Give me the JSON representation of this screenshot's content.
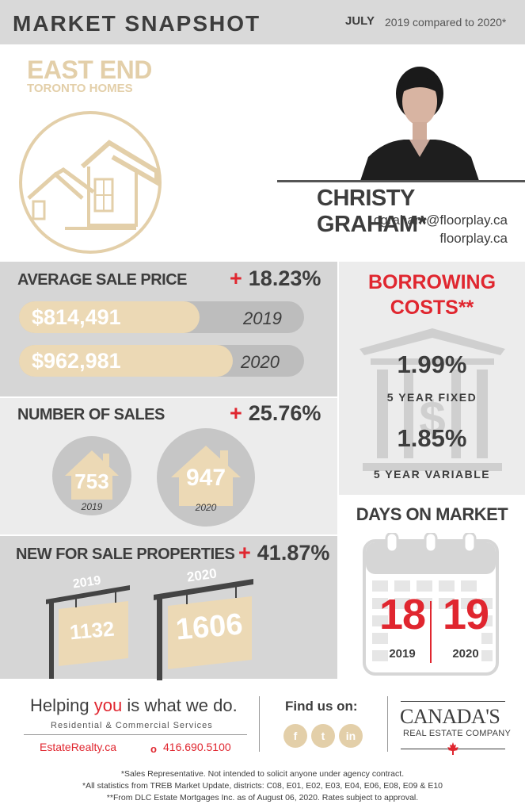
{
  "header": {
    "title": "MARKET SNAPSHOT",
    "month": "JULY",
    "compare": "2019 compared to 2020*"
  },
  "area": {
    "name": "EAST END",
    "subtitle": "TORONTO HOMES"
  },
  "agent": {
    "name": "CHRISTY GRAHAM*",
    "email": "cgraham@floorplay.ca",
    "website": "floorplay.ca"
  },
  "avg_sale_price": {
    "title": "AVERAGE SALE PRICE",
    "plus": "+",
    "change": "18.23%",
    "rows": [
      {
        "value": "$814,491",
        "year": "2019",
        "fill": 0.846
      },
      {
        "value": "$962,981",
        "year": "2020",
        "fill": 1.0
      }
    ]
  },
  "number_of_sales": {
    "title": "NUMBER OF SALES",
    "plus": "+",
    "change": "25.76%",
    "items": [
      {
        "value": "753",
        "year": "2019"
      },
      {
        "value": "947",
        "year": "2020"
      }
    ]
  },
  "new_for_sale": {
    "title": "NEW FOR SALE PROPERTIES",
    "plus": "+",
    "change": "41.87%",
    "items": [
      {
        "value": "1132",
        "year": "2019"
      },
      {
        "value": "1606",
        "year": "2020"
      }
    ]
  },
  "borrowing": {
    "title_line1": "BORROWING",
    "title_line2": "COSTS**",
    "fixed_rate": "1.99%",
    "fixed_label": "5 YEAR FIXED",
    "variable_rate": "1.85%",
    "variable_label": "5 YEAR VARIABLE"
  },
  "days_on_market": {
    "title": "DAYS ON MARKET",
    "values": [
      {
        "value": "18",
        "year": "2019"
      },
      {
        "value": "19",
        "year": "2020"
      }
    ]
  },
  "footer": {
    "tagline_pre": "Helping ",
    "tagline_you": "you",
    "tagline_post": " is what we do.",
    "services": "Residential & Commercial Services",
    "website": "EstateRealty.ca",
    "phone_dot": "o",
    "phone": "416.690.5100",
    "find_us": "Find us on:",
    "social": [
      "f",
      "t",
      "in"
    ],
    "company_line1": "CANADA'S",
    "company_line2": "REAL ESTATE COMPANY",
    "notes": [
      "*Sales Representative. Not intended to solicit anyone under agency contract.",
      "*All statistics from TREB Market Update, districts: C08, E01, E02, E03, E04, E06, E08, E09 & E10",
      "**From DLC Estate Mortgages Inc. as of August 06, 2020. Rates subject to approval."
    ]
  },
  "icons": {
    "house_logo": "house-outline-icon",
    "bank": "bank-dollar-icon",
    "calendar": "calendar-icon",
    "maple_leaf": "maple-leaf-icon"
  },
  "colors": {
    "accent_red": "#e0262f",
    "tan": "#e8d5b2",
    "dark_text": "#3d3d3d",
    "panel_gray": "#d6d6d6",
    "panel_light": "#ececec"
  }
}
